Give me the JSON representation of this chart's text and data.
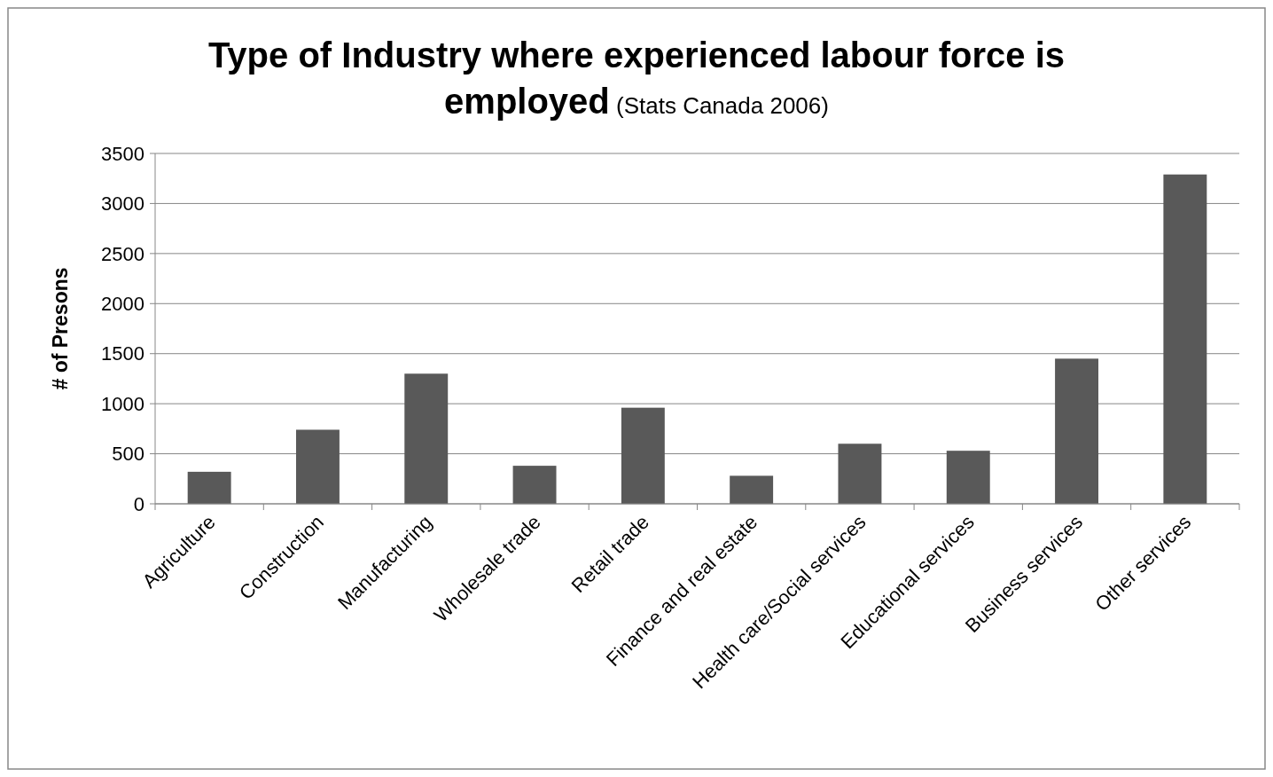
{
  "chart_data": {
    "type": "bar",
    "title": "Type of Industry where experienced labour force is employed",
    "subtitle": "(Stats Canada 2006)",
    "ylabel": "# of Presons",
    "categories": [
      "Agriculture",
      "Construction",
      "Manufacturing",
      "Wholesale trade",
      "Retail trade",
      "Finance and real estate",
      "Health care/Social services",
      "Educational services",
      "Business services",
      "Other services"
    ],
    "values": [
      320,
      740,
      1300,
      380,
      960,
      280,
      600,
      530,
      1450,
      3290
    ],
    "color": "#595959",
    "ylim": [
      0,
      3500
    ],
    "yticks": [
      0,
      500,
      1000,
      1500,
      2000,
      2500,
      3000,
      3500
    ],
    "grid": "y"
  }
}
